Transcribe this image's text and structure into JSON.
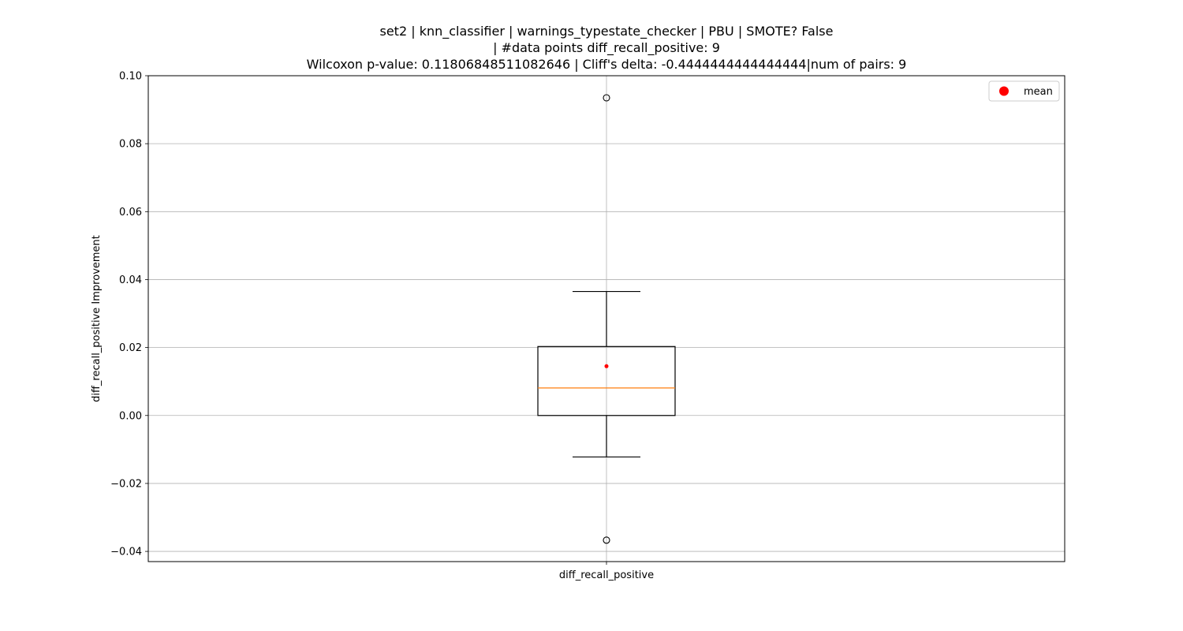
{
  "chart_data": {
    "type": "box",
    "title_lines": [
      "set2 | knn_classifier | warnings_typestate_checker | PBU | SMOTE? False",
      "| #data points diff_recall_positive: 9",
      "Wilcoxon p-value: 0.11806848511082646 | Cliff's delta: -0.4444444444444444|num of pairs: 9"
    ],
    "xlabel": "",
    "ylabel": "diff_recall_positive Improvement",
    "categories": [
      "diff_recall_positive"
    ],
    "ylim": [
      -0.043,
      0.1
    ],
    "yticks": [
      -0.04,
      -0.02,
      0.0,
      0.02,
      0.04,
      0.06,
      0.08,
      0.1
    ],
    "ytick_labels": [
      "−0.04",
      "−0.02",
      "0.00",
      "0.02",
      "0.04",
      "0.06",
      "0.08",
      "0.10"
    ],
    "grid": true,
    "boxes": [
      {
        "name": "diff_recall_positive",
        "whisker_low": -0.0122,
        "q1": 0.0,
        "median": 0.0081,
        "q3": 0.0203,
        "whisker_high": 0.0365,
        "mean": 0.0145,
        "outliers": [
          0.0935,
          -0.0367
        ]
      }
    ],
    "legend": {
      "position": "top-right",
      "entries": [
        {
          "label": "mean",
          "color": "#ff0000"
        }
      ]
    },
    "colors": {
      "box": "#000000",
      "median": "#ff7f0e",
      "mean": "#ff0000",
      "grid": "#b0b0b0"
    }
  }
}
